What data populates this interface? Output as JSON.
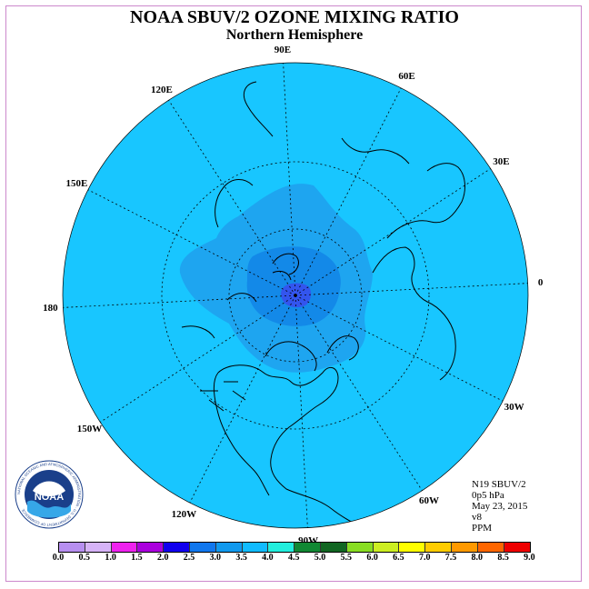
{
  "title": "NOAA SBUV/2 OZONE MIXING RATIO",
  "subtitle": "Northern Hemisphere",
  "longitude_labels": [
    {
      "label": "90E",
      "lon": 90
    },
    {
      "label": "60E",
      "lon": 60
    },
    {
      "label": "30E",
      "lon": 30
    },
    {
      "label": "0",
      "lon": 0
    },
    {
      "label": "30W",
      "lon": -30
    },
    {
      "label": "60W",
      "lon": -60
    },
    {
      "label": "90W",
      "lon": -90
    },
    {
      "label": "120W",
      "lon": -120
    },
    {
      "label": "150W",
      "lon": -150
    },
    {
      "label": "180",
      "lon": 180
    },
    {
      "label": "150E",
      "lon": 150
    },
    {
      "label": "120E",
      "lon": 120
    }
  ],
  "info": {
    "satellite": "N19 SBUV/2",
    "level": "0p5 hPa",
    "date": "May 23, 2015",
    "version": "v8",
    "units": "PPM"
  },
  "colorbar": {
    "labels": [
      "0.0",
      "0.5",
      "1.0",
      "1.5",
      "2.0",
      "2.5",
      "3.0",
      "3.5",
      "4.0",
      "4.5",
      "5.0",
      "5.5",
      "6.0",
      "6.5",
      "7.0",
      "7.5",
      "8.0",
      "8.5",
      "9.0"
    ],
    "colors": [
      "#b78ff0",
      "#d6b3f7",
      "#ee22ee",
      "#aa00dd",
      "#1100ee",
      "#1177ee",
      "#1199ee",
      "#11bbff",
      "#22eedd",
      "#118833",
      "#116622",
      "#88dd22",
      "#ccee22",
      "#ffff00",
      "#ffcc00",
      "#ff9900",
      "#ff6600",
      "#ee0000",
      "#885533"
    ]
  },
  "map_data": {
    "projection": "north-polar-stereographic",
    "background_level_ppm": "3.0-3.5",
    "background_color": "#18c6ff",
    "mid_region_level_ppm": "2.5-3.0",
    "mid_region_color": "#1ea5f0",
    "inner_region_level_ppm": "2.0-2.5",
    "inner_region_color": "#1389e8",
    "core_level_ppm": "1.5-2.0",
    "core_color": "#3355ee"
  },
  "logo": {
    "text": "NOAA",
    "ring_text": "NATIONAL OCEANIC AND ATMOSPHERIC ADMINISTRATION · U.S. DEPARTMENT OF COMMERCE"
  }
}
